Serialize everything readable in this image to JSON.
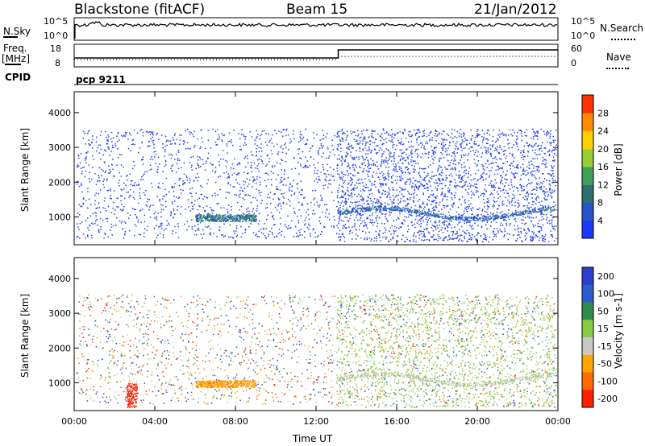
{
  "header": {
    "station": "Blackstone (fitACF)",
    "beam": "Beam 15",
    "date": "21/Jan/2012"
  },
  "top_panels": {
    "nsky_label": "N.Sky",
    "nsearch_label": "N.Search",
    "freq_label_1": "Freq.",
    "freq_label_2": "[MHz]",
    "nave_label": "Nave",
    "cpid_label": "CPID",
    "cpid_value": "pcp 9211",
    "noise_ticks": [
      "10^5",
      "10^0"
    ],
    "freq_ticks": [
      "18",
      "8"
    ],
    "nave_ticks": [
      "60",
      "0"
    ]
  },
  "chart_data": [
    {
      "type": "heatmap",
      "title": "Power",
      "ylabel": "Slant Range [km]",
      "xlabel": "Time UT",
      "x_ticks": [
        "00:00",
        "04:00",
        "08:00",
        "12:00",
        "16:00",
        "20:00",
        "00:00"
      ],
      "x_range_hours": [
        0,
        24
      ],
      "y_ticks": [
        1000,
        2000,
        3000,
        4000
      ],
      "ylim": [
        200,
        4600
      ],
      "colorbar_label": "Power [dB]",
      "colorbar_ticks": [
        4,
        8,
        12,
        16,
        20,
        24,
        28
      ],
      "colorbar_colors": [
        "#1a3aff",
        "#2a52c9",
        "#2e7070",
        "#3fa05a",
        "#9acd32",
        "#ffd000",
        "#ff8c00",
        "#ff3300"
      ]
    },
    {
      "type": "heatmap",
      "title": "Velocity",
      "ylabel": "Slant Range [km]",
      "xlabel": "Time UT",
      "x_ticks": [
        "00:00",
        "04:00",
        "08:00",
        "12:00",
        "16:00",
        "20:00",
        "00:00"
      ],
      "x_range_hours": [
        0,
        24
      ],
      "y_ticks": [
        1000,
        2000,
        3000,
        4000
      ],
      "ylim": [
        200,
        4600
      ],
      "colorbar_label": "Velocity [m s-1]",
      "colorbar_ticks": [
        "200",
        "100",
        "50",
        "15",
        "-15",
        "-50",
        "-100",
        "-200"
      ],
      "colorbar_colors": [
        "#2a3fd0",
        "#2e5ccf",
        "#2f8a50",
        "#88cc44",
        "#c8c8c8",
        "#ffa500",
        "#ff6a00",
        "#ff2000"
      ]
    }
  ],
  "x_axis": {
    "label": "Time UT",
    "ticks": [
      "00:00",
      "04:00",
      "08:00",
      "12:00",
      "16:00",
      "20:00",
      "00:00"
    ]
  }
}
